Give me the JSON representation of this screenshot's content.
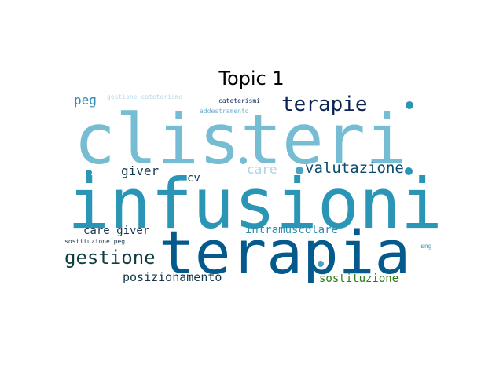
{
  "title": "Topic 1",
  "words": [
    {
      "text": "clisteri",
      "color": "#76bcd2"
    },
    {
      "text": "infusioni",
      "color": "#2b95b6"
    },
    {
      "text": "terapia",
      "color": "#045a8d"
    },
    {
      "text": "terapie",
      "color": "#0b2455"
    },
    {
      "text": "valutazione",
      "color": "#0c4a6e"
    },
    {
      "text": "gestione",
      "color": "#0e3d40"
    },
    {
      "text": "peg",
      "color": "#2a8cb4"
    },
    {
      "text": "giver",
      "color": "#16384f"
    },
    {
      "text": "care",
      "color": "#a8d4e4"
    },
    {
      "text": "cv",
      "color": "#16384f"
    },
    {
      "text": "care giver",
      "color": "#16384f"
    },
    {
      "text": "intramuscolare",
      "color": "#2f8db0"
    },
    {
      "text": "posizionamento",
      "color": "#15384a"
    },
    {
      "text": "sostituzione",
      "color": "#2a7d12"
    },
    {
      "text": "medicazione",
      "color": "#e6f0f5"
    },
    {
      "text": "gestione cateterismo",
      "color": "#b6d8e6"
    },
    {
      "text": "cateterismi",
      "color": "#0b2455"
    },
    {
      "text": "addestramento",
      "color": "#6fb0cc"
    },
    {
      "text": "sostituzione peg",
      "color": "#16384f"
    },
    {
      "text": "sng",
      "color": "#4a90b0"
    }
  ],
  "dots": [
    {
      "name": "dot-1",
      "color": "#2b95b6"
    },
    {
      "name": "dot-2",
      "color": "#4aa3c3"
    },
    {
      "name": "dot-3",
      "color": "#2b95b6"
    },
    {
      "name": "dot-4",
      "color": "#2b95b6"
    },
    {
      "name": "dot-5",
      "color": "#76bcd2"
    },
    {
      "name": "dot-6",
      "color": "#4aa3c3"
    }
  ]
}
